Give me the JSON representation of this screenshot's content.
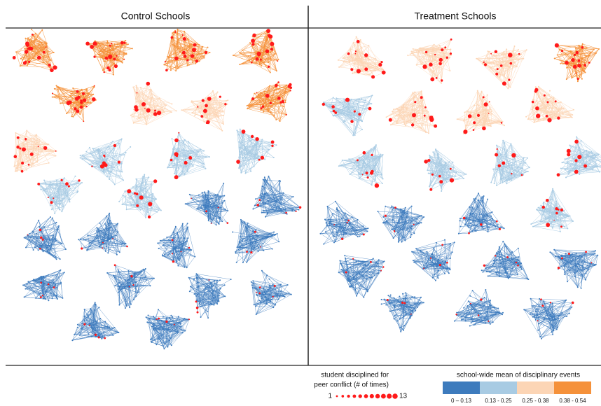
{
  "panels": [
    {
      "title": "Control Schools"
    },
    {
      "title": "Treatment Schools"
    }
  ],
  "size_legend": {
    "title_lines": [
      "student disciplined for",
      "peer conflict (# of times)"
    ],
    "min": 1,
    "max": 13,
    "color": "#ff1a1a"
  },
  "color_legend": {
    "title": "school-wide mean of disciplinary events",
    "bins": [
      {
        "label": "0 – 0.13",
        "color": "#3d7bbd"
      },
      {
        "label": "0.13 - 0.25",
        "color": "#a8cbe3"
      },
      {
        "label": "0.25 - 0.38",
        "color": "#fcd5b5"
      },
      {
        "label": "0.38 - 0.54",
        "color": "#f5913a"
      }
    ]
  }
}
